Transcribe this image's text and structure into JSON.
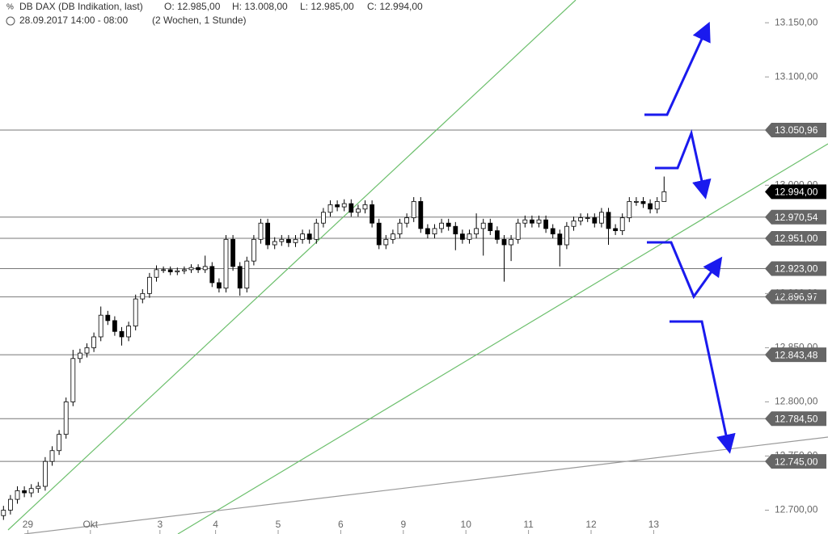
{
  "chart_data": {
    "type": "candlestick",
    "title": "DB DAX (DB Indikation, last)",
    "ohlc_labels": [
      "O: 12.985,00",
      "H: 13.008,00",
      "L: 12.985,00",
      "C: 12.994,00"
    ],
    "subtitle": "28.09.2017 14:00 - 08:00",
    "period": "(2 Wochen, 1 Stunde)",
    "open": [
      12695,
      12700,
      12710,
      12718,
      12716,
      12720,
      12722,
      12745,
      12755,
      12770,
      12800,
      12840,
      12845,
      12850,
      12860,
      12880,
      12875,
      12865,
      12860,
      12870,
      12895,
      12900,
      12915,
      12922,
      12922,
      12920,
      12921,
      12922,
      12924,
      12922,
      12925,
      12910,
      12905,
      12950,
      12925,
      12905,
      12930,
      12950,
      12965,
      12945,
      12948,
      12950,
      12947,
      12950,
      12955,
      12950,
      12965,
      12975,
      12982,
      12980,
      12983,
      12975,
      12978,
      12982,
      12965,
      12945,
      12950,
      12955,
      12965,
      12970,
      12985,
      12960,
      12955,
      12960,
      12965,
      12962,
      12955,
      12950,
      12955,
      12960,
      12965,
      12958,
      12950,
      12945,
      12950,
      12965,
      12968,
      12965,
      12968,
      12960,
      12955,
      12945,
      12962,
      12967,
      12970,
      12970,
      12965,
      12975,
      12960,
      12958,
      12970,
      12985,
      12985,
      12983,
      12978,
      12985
    ],
    "high": [
      12704,
      12714,
      12722,
      12722,
      12724,
      12726,
      12749,
      12759,
      12774,
      12804,
      12848,
      12849,
      12854,
      12864,
      12888,
      12884,
      12879,
      12869,
      12874,
      12899,
      12904,
      12919,
      12926,
      12925,
      12925,
      12924,
      12925,
      12927,
      12927,
      12935,
      12929,
      12914,
      12954,
      12954,
      12929,
      12934,
      12954,
      12969,
      12969,
      12952,
      12954,
      12954,
      12954,
      12959,
      12959,
      12969,
      12979,
      12986,
      12986,
      12987,
      12987,
      12982,
      12986,
      12986,
      12969,
      12954,
      12959,
      12969,
      12974,
      12989,
      12989,
      12964,
      12964,
      12969,
      12969,
      12966,
      12959,
      12959,
      12974,
      12969,
      12969,
      12962,
      12954,
      12954,
      12969,
      12972,
      12972,
      12972,
      12972,
      12964,
      12959,
      12966,
      12971,
      12974,
      12974,
      12974,
      12979,
      12979,
      12964,
      12974,
      12989,
      12989,
      12989,
      12987,
      12989,
      13008
    ],
    "low": [
      12691,
      12696,
      12706,
      12712,
      12712,
      12716,
      12718,
      12741,
      12751,
      12766,
      12796,
      12836,
      12841,
      12846,
      12856,
      12871,
      12861,
      12852,
      12856,
      12866,
      12891,
      12896,
      12911,
      12919,
      12917,
      12917,
      12918,
      12919,
      12919,
      12919,
      12906,
      12901,
      12901,
      12921,
      12898,
      12901,
      12926,
      12946,
      12941,
      12941,
      12944,
      12943,
      12943,
      12946,
      12946,
      12946,
      12961,
      12971,
      12976,
      12976,
      12971,
      12971,
      12974,
      12961,
      12941,
      12941,
      12946,
      12951,
      12961,
      12966,
      12956,
      12951,
      12951,
      12956,
      12958,
      12940,
      12946,
      12946,
      12951,
      12935,
      12954,
      12946,
      12911,
      12930,
      12946,
      12961,
      12961,
      12961,
      12956,
      12951,
      12925,
      12941,
      12958,
      12963,
      12966,
      12961,
      12961,
      12945,
      12954,
      12954,
      12966,
      12981,
      12979,
      12974,
      12974,
      12985
    ],
    "close": [
      12700,
      12710,
      12718,
      12716,
      12720,
      12722,
      12745,
      12755,
      12770,
      12800,
      12840,
      12845,
      12850,
      12860,
      12880,
      12875,
      12865,
      12860,
      12870,
      12895,
      12900,
      12915,
      12922,
      12922,
      12920,
      12921,
      12922,
      12924,
      12922,
      12925,
      12910,
      12905,
      12950,
      12925,
      12905,
      12930,
      12950,
      12965,
      12945,
      12948,
      12950,
      12947,
      12950,
      12955,
      12950,
      12965,
      12975,
      12982,
      12980,
      12983,
      12975,
      12978,
      12982,
      12965,
      12945,
      12950,
      12955,
      12965,
      12970,
      12985,
      12960,
      12955,
      12960,
      12965,
      12962,
      12955,
      12950,
      12955,
      12960,
      12965,
      12958,
      12950,
      12945,
      12950,
      12965,
      12968,
      12965,
      12968,
      12960,
      12955,
      12945,
      12962,
      12967,
      12970,
      12970,
      12965,
      12975,
      12960,
      12958,
      12970,
      12985,
      12985,
      12983,
      12978,
      12985,
      12994
    ],
    "xlim": [
      0,
      110
    ],
    "xticks": [
      {
        "value": 4,
        "label": "29"
      },
      {
        "value": 13,
        "label": "Okt"
      },
      {
        "value": 23,
        "label": "3"
      },
      {
        "value": 31,
        "label": "4"
      },
      {
        "value": 40,
        "label": "5"
      },
      {
        "value": 49,
        "label": "6"
      },
      {
        "value": 58,
        "label": "9"
      },
      {
        "value": 67,
        "label": "10"
      },
      {
        "value": 76,
        "label": "11"
      },
      {
        "value": 85,
        "label": "12"
      },
      {
        "value": 94,
        "label": "13"
      }
    ],
    "ylim": [
      12678,
      13171
    ],
    "yticks": [
      {
        "value": 13150,
        "label": "13.150,00"
      },
      {
        "value": 13100,
        "label": "13.100,00"
      },
      {
        "value": 13000,
        "label": "13.000,00"
      },
      {
        "value": 12900,
        "label": "12.900,00"
      },
      {
        "value": 12850,
        "label": "12.850,00"
      },
      {
        "value": 12800,
        "label": "12.800,00"
      },
      {
        "value": 12750,
        "label": "12.750,00"
      },
      {
        "value": 12700,
        "label": "12.700,00"
      }
    ],
    "levels": [
      {
        "value": 13050.96,
        "label": "13.050,96"
      },
      {
        "value": 12970.54,
        "label": "12.970,54"
      },
      {
        "value": 12951,
        "label": "12.951,00"
      },
      {
        "value": 12923,
        "label": "12.923,00"
      },
      {
        "value": 12896.97,
        "label": "12.896,97"
      },
      {
        "value": 12843.48,
        "label": "12.843,48"
      },
      {
        "value": 12784.5,
        "label": "12.784,50"
      },
      {
        "value": 12745,
        "label": "12.745,00"
      }
    ],
    "last": {
      "value": 12994,
      "label": "12.994,00"
    }
  }
}
